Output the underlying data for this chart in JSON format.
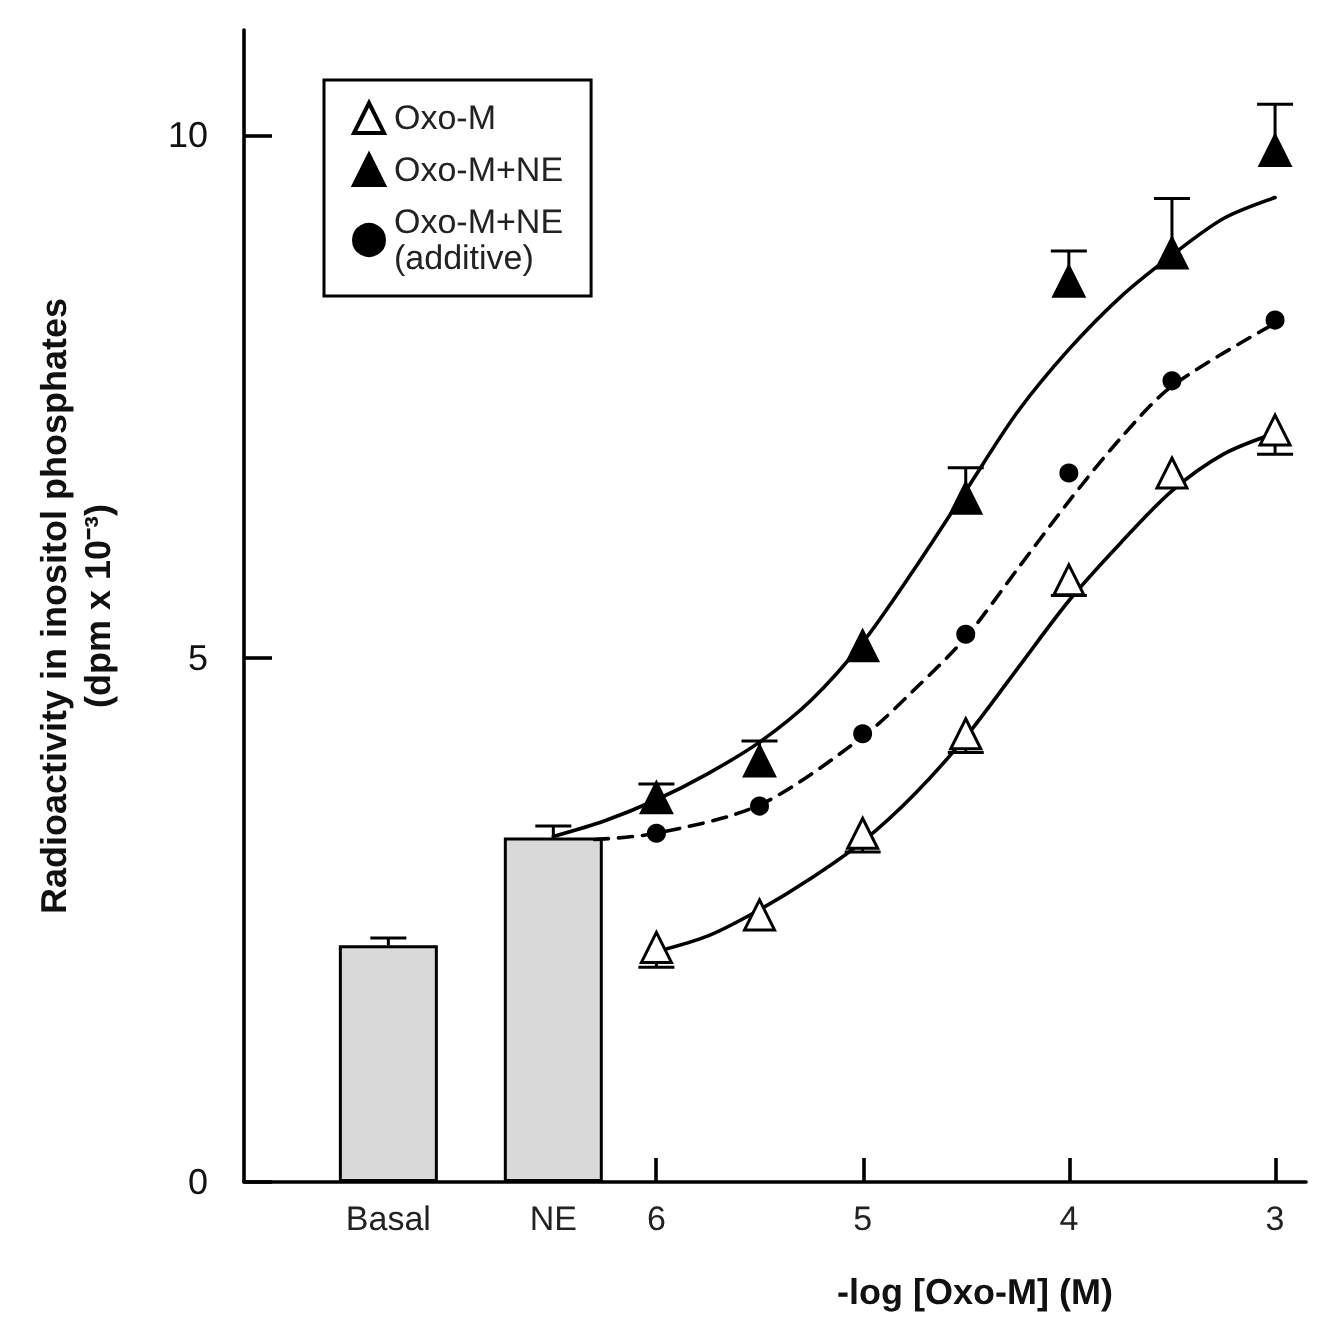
{
  "chart_data": {
    "type": "line",
    "xlabel": "-log [Oxo-M] (M)",
    "ylabel": "Radioactivity in inositol phosphates\n(dpm x 10⁻³)",
    "xlim": [
      8,
      2.85
    ],
    "xticks": [
      {
        "value": 7.3,
        "label": "Basal"
      },
      {
        "value": 6.5,
        "label": "NE"
      },
      6,
      5,
      4,
      3
    ],
    "ylim": [
      0,
      11
    ],
    "yticks": [
      0,
      5,
      10
    ],
    "legend": "top left",
    "grid": false,
    "series": [
      {
        "type": "bar",
        "color": "#d9d9d9",
        "x": [
          7.3,
          6.5
        ],
        "values": [
          2.26,
          3.29
        ],
        "errors": [
          [
            2.26,
            2.33
          ],
          [
            3.29,
            3.4
          ]
        ]
      },
      {
        "color": "#000000",
        "line_style": "solid",
        "marker": "none",
        "x": [
          6,
          5.75,
          5.5,
          5.25,
          5,
          4.75,
          4.5,
          4.25,
          4,
          3.75,
          3.5,
          3.25,
          3
        ],
        "values": [
          2.2,
          2.35,
          2.6,
          2.9,
          3.25,
          3.7,
          4.25,
          4.9,
          5.55,
          6.1,
          6.6,
          6.95,
          7.15
        ]
      },
      {
        "color": "#000000",
        "line_style": "solid",
        "marker": "none",
        "x": [
          6.5,
          6.25,
          6,
          5.75,
          5.5,
          5.25,
          5,
          4.75,
          4.5,
          4.25,
          4,
          3.75,
          3.5,
          3.25,
          3
        ],
        "values": [
          3.3,
          3.45,
          3.65,
          3.9,
          4.2,
          4.6,
          5.15,
          5.85,
          6.6,
          7.35,
          7.95,
          8.45,
          8.85,
          9.2,
          9.4
        ]
      },
      {
        "color": "#000000",
        "line_style": "dashed",
        "marker": "none",
        "x": [
          6.3,
          6,
          5.5,
          5,
          4.75,
          4.5,
          4.25,
          4,
          3.75,
          3.5,
          3
        ],
        "values": [
          3.27,
          3.33,
          3.6,
          4.25,
          4.7,
          5.2,
          5.85,
          6.5,
          7.1,
          7.6,
          8.2
        ]
      },
      {
        "type": "scatter",
        "name": "Oxo-M",
        "color": "#ffffff",
        "marker": "triangle",
        "x": [
          6,
          5.5,
          5,
          4.5,
          4,
          3.5,
          3
        ],
        "values": [
          2.24,
          2.55,
          3.33,
          4.28,
          5.75,
          6.77,
          7.18
        ],
        "errors": [
          [
            2.05,
            2.24
          ],
          null,
          [
            3.15,
            3.33
          ],
          [
            4.1,
            4.28
          ],
          [
            5.6,
            5.75
          ],
          null,
          [
            6.95,
            7.18
          ]
        ]
      },
      {
        "type": "scatter",
        "name": "Oxo-M+NE",
        "color": "#000000",
        "marker": "triangle",
        "x": [
          6,
          5.5,
          5,
          4.5,
          4,
          3.5,
          3
        ],
        "values": [
          3.67,
          4.02,
          5.12,
          6.53,
          8.6,
          8.87,
          9.85
        ],
        "errors": [
          [
            3.67,
            3.8
          ],
          [
            4.02,
            4.21
          ],
          null,
          [
            6.53,
            6.82
          ],
          [
            8.6,
            8.89
          ],
          [
            8.87,
            9.39
          ],
          [
            9.85,
            10.29
          ]
        ]
      },
      {
        "type": "scatter",
        "name": "Oxo-M+NE\n(additive)",
        "color": "#000000",
        "marker": "circle",
        "x": [
          6,
          5.5,
          5,
          4.5,
          4,
          3.5,
          3
        ],
        "values": [
          3.33,
          3.59,
          4.28,
          5.23,
          6.77,
          7.65,
          8.23
        ]
      }
    ]
  }
}
